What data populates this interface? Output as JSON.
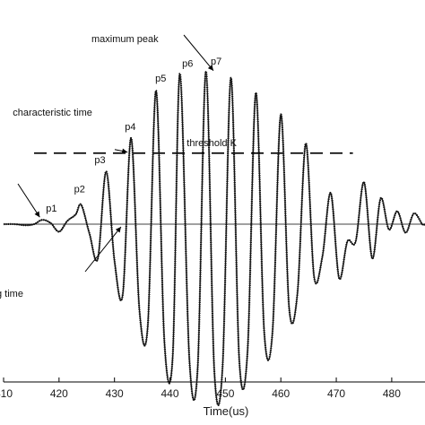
{
  "chart_data": {
    "type": "line",
    "title": "",
    "xlabel": "Time(us)",
    "ylabel": "",
    "xlim": [
      410,
      486
    ],
    "ylim": [
      -1.0,
      1.0
    ],
    "x_ticks": [
      410,
      420,
      430,
      440,
      450,
      460,
      470,
      480
    ],
    "x_tick_labels": [
      "410",
      "420",
      "430",
      "440",
      "450",
      "460",
      "470",
      "480"
    ],
    "grid": false,
    "legend": "none",
    "series": [
      {
        "x": [
          410,
          412,
          414,
          415.5,
          417,
          418.5,
          420,
          421.5,
          423,
          424,
          425.5,
          427,
          428.5,
          430,
          431.5,
          433,
          434.5,
          436,
          437.5,
          439,
          440.5,
          441.8,
          443.5,
          445,
          446.5,
          448,
          449.5,
          451,
          452.5,
          454,
          455.5,
          457,
          458.5,
          460,
          461.5,
          463,
          464.5,
          466,
          467.5,
          469,
          470.5,
          472,
          473.5,
          475,
          476.5,
          478,
          479.5,
          481,
          482.5,
          484,
          485.5,
          486
        ],
        "y": [
          0.0,
          0.0,
          -0.01,
          0.0,
          0.04,
          0.01,
          -0.07,
          0.03,
          0.09,
          0.18,
          -0.09,
          -0.32,
          0.49,
          -0.34,
          -0.65,
          0.8,
          -0.8,
          -0.95,
          1.24,
          -1.09,
          -1.23,
          1.4,
          -1.25,
          -1.34,
          1.42,
          -1.36,
          -1.32,
          1.36,
          -1.26,
          -1.18,
          1.22,
          -1.0,
          -1.0,
          1.02,
          -0.78,
          -0.64,
          0.75,
          -0.49,
          -0.3,
          0.29,
          -0.5,
          -0.16,
          -0.16,
          0.39,
          -0.32,
          0.24,
          -0.05,
          0.12,
          -0.08,
          0.1,
          0.0,
          0.0
        ]
      }
    ],
    "reference_lines": [
      {
        "label": "threshold K",
        "y": 0.66,
        "style": "dashed"
      },
      {
        "label": "zero",
        "y": 0.0,
        "style": "solid"
      }
    ],
    "annotations": [
      {
        "text": "maximum peak",
        "x": 448,
        "y": 1.41
      },
      {
        "text": "p1",
        "x": 417,
        "y": 0.04
      },
      {
        "text": "p2",
        "x": 424,
        "y": 0.18
      },
      {
        "text": "p3",
        "x": 428.5,
        "y": 0.49
      },
      {
        "text": "p4",
        "x": 433,
        "y": 0.8
      },
      {
        "text": "p5",
        "x": 438.8,
        "y": 1.24
      },
      {
        "text": "p6",
        "x": 443.5,
        "y": 1.38
      },
      {
        "text": "p7",
        "x": 448,
        "y": 1.41
      },
      {
        "text": "characteristic time",
        "x": 433,
        "y": 0.66
      },
      {
        "text": "threshold K",
        "x": 455,
        "y": 0.66
      },
      {
        "text": "me",
        "x": 418.5,
        "y": 0.04
      },
      {
        "text": "o crossing time",
        "x": 431.5,
        "y": 0.0
      }
    ]
  }
}
